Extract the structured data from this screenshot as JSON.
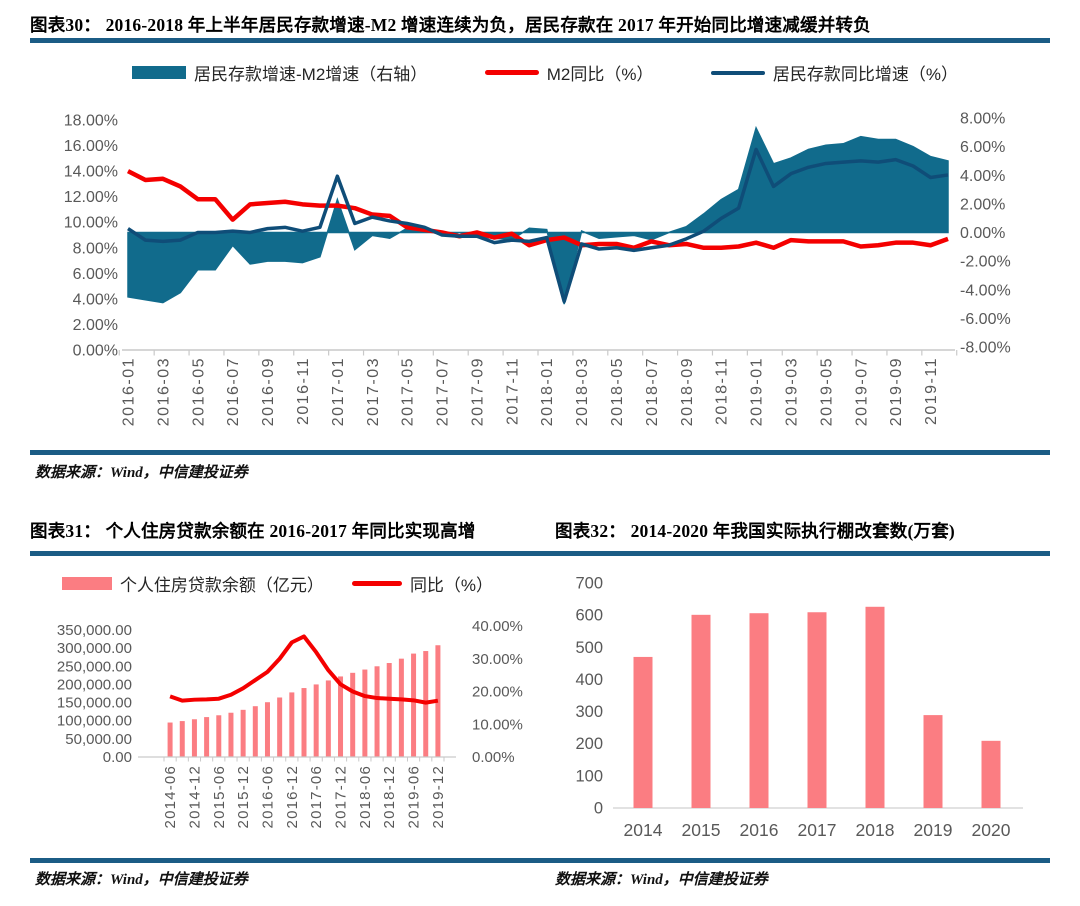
{
  "colors": {
    "rule": "#1b5c85",
    "area": "#116b8c",
    "deposit_line": "#0f4d78",
    "m2_line": "#f40000",
    "bar_pink": "#fb7d82",
    "axis_text": "#595959",
    "axis_line": "#c9c9c9",
    "zero_line": "#cfd9de",
    "baseline32": "#d9d9d9"
  },
  "figures": {
    "f30": {
      "title": "图表30： 2016-2018 年上半年居民存款增速-M2 增速连续为负，居民存款在 2017 年开始同比增速减缓并转负",
      "source": "数据来源：Wind，中信建投证券"
    },
    "f31": {
      "title": "图表31： 个人住房贷款余额在 2016-2017 年同比实现高增",
      "source": "数据来源：Wind，中信建投证券"
    },
    "f32": {
      "title": "图表32： 2014-2020 年我国实际执行棚改套数(万套)",
      "source": "数据来源：Wind，中信建投证券"
    }
  },
  "chart_data": [
    {
      "id": "fig30",
      "type": "combo-area-line",
      "title": "2016-2018 年上半年居民存款增速-M2 增速连续为负，居民存款在 2017 年开始同比增速减缓并转负",
      "categories": [
        "2016-01",
        "2016-02",
        "2016-03",
        "2016-04",
        "2016-05",
        "2016-06",
        "2016-07",
        "2016-08",
        "2016-09",
        "2016-10",
        "2016-11",
        "2016-12",
        "2017-01",
        "2017-02",
        "2017-03",
        "2017-04",
        "2017-05",
        "2017-06",
        "2017-07",
        "2017-08",
        "2017-09",
        "2017-10",
        "2017-11",
        "2017-12",
        "2018-01",
        "2018-02",
        "2018-03",
        "2018-04",
        "2018-05",
        "2018-06",
        "2018-07",
        "2018-08",
        "2018-09",
        "2018-10",
        "2018-11",
        "2018-12",
        "2019-01",
        "2019-02",
        "2019-03",
        "2019-04",
        "2019-05",
        "2019-06",
        "2019-07",
        "2019-08",
        "2019-09",
        "2019-10",
        "2019-11",
        "2019-12"
      ],
      "x_tick_step": 2,
      "left_axis": {
        "min": 0,
        "max": 18,
        "ticks": [
          "18.00%",
          "16.00%",
          "14.00%",
          "12.00%",
          "10.00%",
          "8.00%",
          "6.00%",
          "4.00%",
          "2.00%",
          "0.00%"
        ]
      },
      "right_axis": {
        "min": -8,
        "max": 8,
        "ticks": [
          "8.00%",
          "6.00%",
          "4.00%",
          "2.00%",
          "0.00%",
          "-2.00%",
          "-4.00%",
          "-6.00%",
          "-8.00%"
        ]
      },
      "series": [
        {
          "name": "居民存款增速-M2增速（右轴）",
          "type": "area",
          "axis": "right",
          "values": [
            -4.5,
            -4.7,
            -4.9,
            -4.2,
            -2.6,
            -2.6,
            -0.9,
            -2.2,
            -2.0,
            -2.0,
            -2.1,
            -1.7,
            2.3,
            -1.2,
            -0.2,
            -0.4,
            0.3,
            0.2,
            -0.2,
            0.0,
            -0.3,
            -0.4,
            -0.5,
            0.3,
            0.2,
            -5.0,
            0.1,
            -0.4,
            -0.3,
            -0.2,
            -0.5,
            0.0,
            0.4,
            1.3,
            2.3,
            3.0,
            7.3,
            4.8,
            5.2,
            5.8,
            6.1,
            6.2,
            6.7,
            6.5,
            6.5,
            6.0,
            5.3,
            5.0
          ]
        },
        {
          "name": "M2同比（%）",
          "type": "line",
          "axis": "left",
          "values": [
            14.0,
            13.3,
            13.4,
            12.8,
            11.8,
            11.8,
            10.2,
            11.4,
            11.5,
            11.6,
            11.4,
            11.3,
            11.3,
            11.1,
            10.6,
            10.5,
            9.6,
            9.4,
            9.2,
            8.9,
            9.2,
            8.8,
            9.1,
            8.2,
            8.6,
            8.8,
            8.2,
            8.3,
            8.3,
            8.0,
            8.5,
            8.2,
            8.3,
            8.0,
            8.0,
            8.1,
            8.4,
            8.0,
            8.6,
            8.5,
            8.5,
            8.5,
            8.1,
            8.2,
            8.4,
            8.4,
            8.2,
            8.7
          ]
        },
        {
          "name": "居民存款同比增速（%）",
          "type": "line",
          "axis": "left",
          "values": [
            9.5,
            8.6,
            8.5,
            8.6,
            9.2,
            9.2,
            9.3,
            9.2,
            9.5,
            9.6,
            9.3,
            9.6,
            13.6,
            9.9,
            10.4,
            10.1,
            9.9,
            9.6,
            9.0,
            8.9,
            8.9,
            8.4,
            8.6,
            8.5,
            8.8,
            3.8,
            8.3,
            7.9,
            8.0,
            7.8,
            8.0,
            8.2,
            8.7,
            9.3,
            10.3,
            11.1,
            15.7,
            12.8,
            13.8,
            14.3,
            14.6,
            14.7,
            14.8,
            14.7,
            14.9,
            14.4,
            13.5,
            13.7
          ]
        }
      ]
    },
    {
      "id": "fig31",
      "type": "combo-bar-line",
      "title": "个人住房贷款余额在 2016-2017 年同比实现高增",
      "categories": [
        "2014-06",
        "2014-09",
        "2014-12",
        "2015-03",
        "2015-06",
        "2015-09",
        "2015-12",
        "2016-03",
        "2016-06",
        "2016-09",
        "2016-12",
        "2017-03",
        "2017-06",
        "2017-09",
        "2017-12",
        "2018-03",
        "2018-06",
        "2018-09",
        "2018-12",
        "2019-03",
        "2019-06",
        "2019-09",
        "2019-12"
      ],
      "x_tick_step": 2,
      "left_axis": {
        "min": 0,
        "max": 350000,
        "ticks": [
          "350,000.00",
          "300,000.00",
          "250,000.00",
          "200,000.00",
          "150,000.00",
          "100,000.00",
          "50,000.00",
          "0.00"
        ]
      },
      "right_axis": {
        "min": 0,
        "max": 40,
        "ticks": [
          "40.00%",
          "30.00%",
          "20.00%",
          "10.00%",
          "0.00%"
        ]
      },
      "series": [
        {
          "name": "个人住房贷款余额（亿元）",
          "type": "bar",
          "axis": "left",
          "values": [
            95000,
            99000,
            104000,
            110000,
            115000,
            122000,
            130000,
            140000,
            151000,
            164000,
            178000,
            190000,
            200000,
            211000,
            222000,
            232000,
            241000,
            250000,
            259000,
            271000,
            285000,
            292000,
            308000
          ]
        },
        {
          "name": "同比（%）",
          "type": "line",
          "axis": "right",
          "values": [
            18.5,
            17.2,
            17.5,
            17.6,
            17.8,
            19.0,
            21.0,
            23.5,
            26.0,
            30.0,
            35.0,
            36.8,
            32.0,
            26.5,
            22.2,
            20.0,
            18.6,
            18.0,
            17.8,
            17.6,
            17.3,
            16.6,
            17.2
          ]
        }
      ]
    },
    {
      "id": "fig32",
      "type": "bar",
      "title": "2014-2020 年我国实际执行棚改套数(万套)",
      "categories": [
        "2014",
        "2015",
        "2016",
        "2017",
        "2018",
        "2019",
        "2020"
      ],
      "values": [
        470,
        601,
        606,
        609,
        626,
        289,
        209
      ],
      "ylabel": "万套",
      "ylim": [
        0,
        700
      ],
      "y_ticks": [
        "700",
        "600",
        "500",
        "400",
        "300",
        "200",
        "100",
        "0"
      ]
    }
  ]
}
